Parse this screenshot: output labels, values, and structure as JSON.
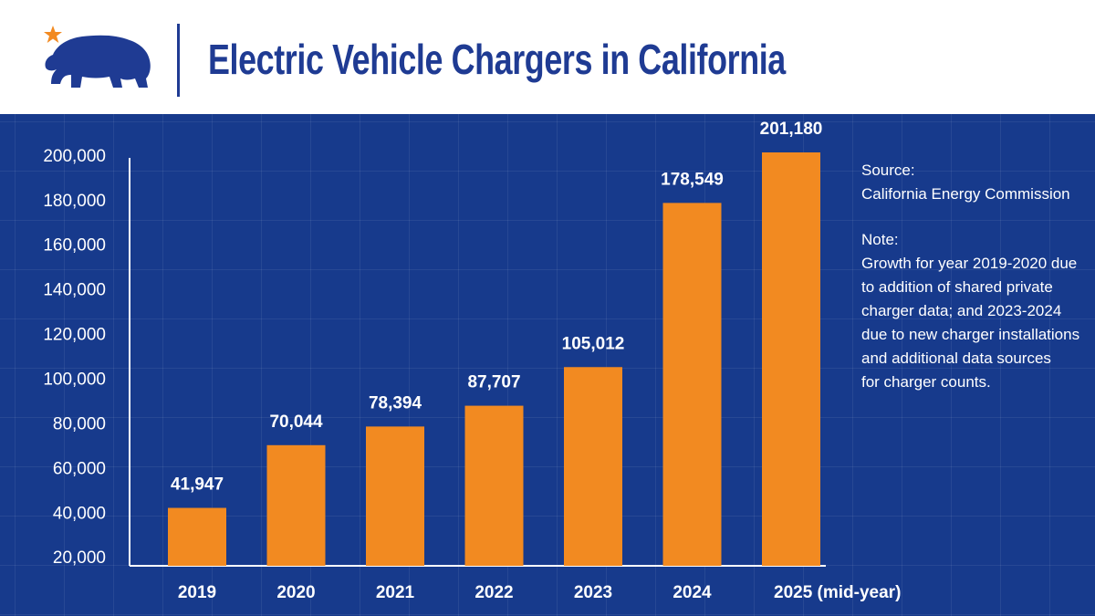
{
  "header": {
    "title": "Electric Vehicle Chargers in California"
  },
  "colors": {
    "brand_blue": "#1f3b93",
    "panel_blue": "#173a8c",
    "bar_orange": "#f28a21",
    "star_orange": "#f28a21"
  },
  "notes": {
    "source_label": "Source:",
    "source_text": "California Energy Commission",
    "note_label": "Note:",
    "note_lines": [
      "Growth for year 2019-2020 due",
      "to addition of shared private",
      "charger data; and 2023-2024",
      "due to new charger installations",
      "and additional data sources",
      "for charger counts."
    ]
  },
  "chart_data": {
    "type": "bar",
    "title": "Electric Vehicle Chargers in California",
    "categories": [
      "2019",
      "2020",
      "2021",
      "2022",
      "2023",
      "2024",
      "2025 (mid-year)"
    ],
    "values": [
      41947,
      70044,
      78394,
      87707,
      105012,
      178549,
      201180
    ],
    "value_labels": [
      "41,947",
      "70,044",
      "78,394",
      "87,707",
      "105,012",
      "178,549",
      "201,180"
    ],
    "yticks": [
      20000,
      40000,
      60000,
      80000,
      100000,
      120000,
      140000,
      160000,
      180000,
      200000
    ],
    "ytick_labels": [
      "20,000",
      "40,000",
      "60,000",
      "80,000",
      "100,000",
      "120,000",
      "140,000",
      "160,000",
      "180,000",
      "200,000"
    ],
    "ylim": [
      16000,
      202000
    ],
    "xlabel": "",
    "ylabel": "",
    "grid": true,
    "legend": "none"
  }
}
